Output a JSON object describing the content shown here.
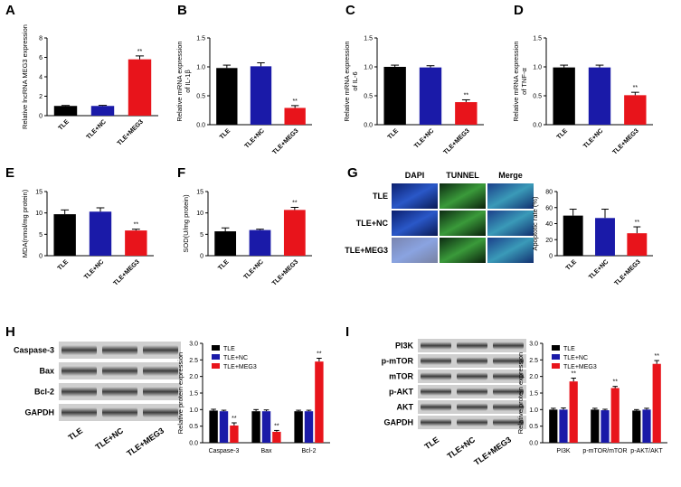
{
  "panel_labels": [
    "A",
    "B",
    "C",
    "D",
    "E",
    "F",
    "G",
    "H",
    "I"
  ],
  "microscopy": {
    "columns": [
      "DAPI",
      "TUNNEL",
      "Merge"
    ],
    "rows": [
      "TLE",
      "TLE+NC",
      "TLE+MEG3"
    ]
  },
  "blot_h": {
    "rows": [
      "Caspase-3",
      "Bax",
      "Bcl-2",
      "GAPDH"
    ],
    "lanes": [
      "TLE",
      "TLE+NC",
      "TLE+MEG3"
    ]
  },
  "blot_i": {
    "rows": [
      "PI3K",
      "p-mTOR",
      "mTOR",
      "p-AKT",
      "AKT",
      "GAPDH"
    ],
    "lanes": [
      "TLE",
      "TLE+NC",
      "TLE+MEG3"
    ]
  },
  "chart_data": [
    {
      "type": "bar",
      "ylabel": [
        "Relative lncRNA MEG3 expression"
      ],
      "categories": [
        "TLE",
        "TLE+NC",
        "TLE+MEG3"
      ],
      "values": [
        1.0,
        1.0,
        5.8
      ],
      "errors": [
        0.05,
        0.06,
        0.35
      ],
      "labels": [
        null,
        null,
        "**"
      ],
      "colors": [
        "#000000",
        "#1a1aa8",
        "#e8141b"
      ],
      "ylim": [
        0,
        8
      ],
      "yticks": [
        0,
        2,
        4,
        6,
        8
      ]
    },
    {
      "type": "bar",
      "ylabel": [
        "Relative mRNA expression",
        "of IL-1β"
      ],
      "categories": [
        "TLE",
        "TLE+NC",
        "TLE+MEG3"
      ],
      "values": [
        0.98,
        1.01,
        0.29
      ],
      "errors": [
        0.05,
        0.06,
        0.04
      ],
      "labels": [
        null,
        null,
        "**"
      ],
      "colors": [
        "#000000",
        "#1a1aa8",
        "#e8141b"
      ],
      "ylim": [
        0,
        1.5
      ],
      "yticks": [
        {
          "value": 0,
          "label": "0.0"
        },
        0.5,
        {
          "value": 1,
          "label": "1.0"
        },
        1.5
      ]
    },
    {
      "type": "bar",
      "ylabel": [
        "Relative mRNA expression",
        "of IL-6"
      ],
      "categories": [
        "TLE",
        "TLE+NC",
        "TLE+MEG3"
      ],
      "values": [
        1.0,
        0.99,
        0.39
      ],
      "errors": [
        0.03,
        0.03,
        0.04
      ],
      "labels": [
        null,
        null,
        "**"
      ],
      "colors": [
        "#000000",
        "#1a1aa8",
        "#e8141b"
      ],
      "ylim": [
        0,
        1.5
      ],
      "yticks": [
        {
          "value": 0,
          "label": "0.0"
        },
        0.5,
        {
          "value": 1,
          "label": "1.0"
        },
        1.5
      ]
    },
    {
      "type": "bar",
      "ylabel": [
        "Relative  mRNA expression",
        "of TNF-α"
      ],
      "categories": [
        "TLE",
        "TLE+NC",
        "TLE+MEG3"
      ],
      "values": [
        0.99,
        0.99,
        0.51
      ],
      "errors": [
        0.04,
        0.04,
        0.05
      ],
      "labels": [
        null,
        null,
        "**"
      ],
      "colors": [
        "#000000",
        "#1a1aa8",
        "#e8141b"
      ],
      "ylim": [
        0,
        1.5
      ],
      "yticks": [
        {
          "value": 0,
          "label": "0.0"
        },
        0.5,
        {
          "value": 1,
          "label": "1.0"
        },
        1.5
      ]
    },
    {
      "type": "bar",
      "ylabel": [
        "MDA(nmol/mg protein)"
      ],
      "categories": [
        "TLE",
        "TLE+NC",
        "TLE+MEG3"
      ],
      "values": [
        9.7,
        10.3,
        5.9
      ],
      "errors": [
        1.0,
        0.9,
        0.3
      ],
      "labels": [
        null,
        null,
        "**"
      ],
      "colors": [
        "#000000",
        "#1a1aa8",
        "#e8141b"
      ],
      "ylim": [
        0,
        15
      ],
      "yticks": [
        0,
        5,
        10,
        15
      ]
    },
    {
      "type": "bar",
      "ylabel": [
        "SOD(U/mg protein)"
      ],
      "categories": [
        "TLE",
        "TLE+NC",
        "TLE+MEG3"
      ],
      "values": [
        5.7,
        6.0,
        10.7
      ],
      "errors": [
        0.8,
        0.2,
        0.6
      ],
      "labels": [
        null,
        null,
        "**"
      ],
      "colors": [
        "#000000",
        "#1a1aa8",
        "#e8141b"
      ],
      "ylim": [
        0,
        15
      ],
      "yticks": [
        0,
        5,
        10,
        15
      ]
    },
    {
      "type": "bar",
      "ylabel": [
        "Apoptotic rate (%)"
      ],
      "categories": [
        "TLE",
        "TLE+NC",
        "TLE+MEG3"
      ],
      "values": [
        50,
        47,
        28
      ],
      "errors": [
        8,
        11,
        8
      ],
      "labels": [
        null,
        null,
        "**"
      ],
      "colors": [
        "#000000",
        "#1a1aa8",
        "#e8141b"
      ],
      "ylim": [
        0,
        80
      ],
      "yticks": [
        0,
        20,
        40,
        60,
        80
      ]
    },
    {
      "type": "grouped_bar",
      "ylabel": [
        "Relative protein expression"
      ],
      "categories": [
        "Caspase-3",
        "Bax",
        "Bcl-2"
      ],
      "ylim": [
        0,
        3
      ],
      "yticks": [
        {
          "value": 0,
          "label": "0.0"
        },
        0.5,
        {
          "value": 1,
          "label": "1.0"
        },
        1.5,
        {
          "value": 2,
          "label": "2.0"
        },
        2.5,
        {
          "value": 3,
          "label": "3.0"
        }
      ],
      "series": [
        {
          "name": "TLE",
          "color": "#000000",
          "values": [
            0.97,
            0.95,
            0.95
          ],
          "errors": [
            0.04,
            0.05,
            0.03
          ],
          "labels": [
            null,
            null,
            null
          ]
        },
        {
          "name": "TLE+NC",
          "color": "#1a1aa8",
          "values": [
            0.95,
            0.95,
            0.95
          ],
          "errors": [
            0.03,
            0.04,
            0.03
          ],
          "labels": [
            null,
            null,
            null
          ]
        },
        {
          "name": "TLE+MEG3",
          "color": "#e8141b",
          "values": [
            0.52,
            0.33,
            2.45
          ],
          "errors": [
            0.08,
            0.04,
            0.1
          ],
          "labels": [
            "**",
            "**",
            "**"
          ]
        }
      ]
    },
    {
      "type": "grouped_bar",
      "ylabel": [
        "Relative protein expression"
      ],
      "categories": [
        "PI3K",
        "p-mTOR/mTOR",
        "p-AKT/AKT"
      ],
      "ylim": [
        0,
        3
      ],
      "yticks": [
        {
          "value": 0,
          "label": "0.0"
        },
        0.5,
        {
          "value": 1,
          "label": "1.0"
        },
        1.5,
        {
          "value": 2,
          "label": "2.0"
        },
        2.5,
        {
          "value": 3,
          "label": "3.0"
        }
      ],
      "series": [
        {
          "name": "TLE",
          "color": "#000000",
          "values": [
            1.0,
            1.0,
            0.97
          ],
          "errors": [
            0.04,
            0.04,
            0.03
          ],
          "labels": [
            null,
            null,
            null
          ]
        },
        {
          "name": "TLE+NC",
          "color": "#1a1aa8",
          "values": [
            1.0,
            0.98,
            1.0
          ],
          "errors": [
            0.05,
            0.03,
            0.04
          ],
          "labels": [
            null,
            null,
            null
          ]
        },
        {
          "name": "TLE+MEG3",
          "color": "#e8141b",
          "values": [
            1.85,
            1.65,
            2.38
          ],
          "errors": [
            0.1,
            0.05,
            0.1
          ],
          "labels": [
            "**",
            "**",
            "**"
          ]
        }
      ]
    }
  ]
}
